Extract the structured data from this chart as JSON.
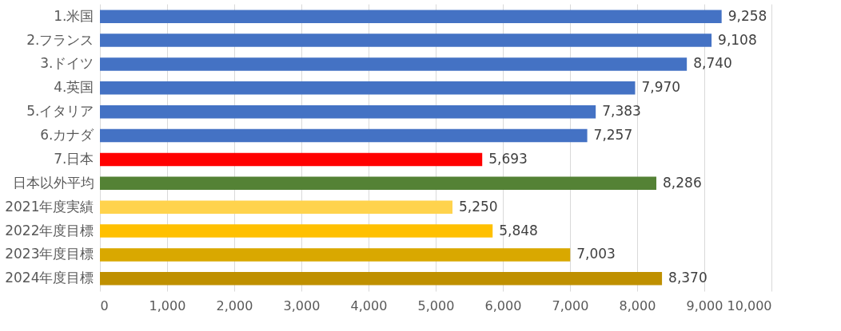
{
  "chart_data": {
    "type": "bar",
    "orientation": "horizontal",
    "categories": [
      "1.米国",
      "2.フランス",
      "3.ドイツ",
      "4.英国",
      "5.イタリア",
      "6.カナダ",
      "7.日本",
      "日本以外平均",
      "2021年度実績",
      "2022年度目標",
      "2023年度目標",
      "2024年度目標"
    ],
    "values": [
      9258,
      9108,
      8740,
      7970,
      7383,
      7257,
      5693,
      8286,
      5250,
      5848,
      7003,
      8370
    ],
    "value_labels": [
      "9,258",
      "9,108",
      "8,740",
      "7,970",
      "7,383",
      "7,257",
      "5,693",
      "8,286",
      "5,250",
      "5,848",
      "7,003",
      "8,370"
    ],
    "colors": [
      "#4472c4",
      "#4472c4",
      "#4472c4",
      "#4472c4",
      "#4472c4",
      "#4472c4",
      "#ff0000",
      "#548235",
      "#ffd34d",
      "#ffc000",
      "#d9a800",
      "#bf9000"
    ],
    "xlim": [
      0,
      10000
    ],
    "xticks": [
      0,
      {
        "value": 1000,
        "label": "1,000"
      },
      {
        "value": 2000,
        "label": "2,000"
      },
      {
        "value": 3000,
        "label": "3,000"
      },
      {
        "value": 4000,
        "label": "4,000"
      },
      {
        "value": 5000,
        "label": "5,000"
      },
      {
        "value": 6000,
        "label": "6,000"
      },
      {
        "value": 7000,
        "label": "7,000"
      },
      {
        "value": 8000,
        "label": "8,000"
      },
      {
        "value": 9000,
        "label": "9,000"
      },
      {
        "value": 10000,
        "label": "10,000"
      }
    ],
    "grid": "x"
  }
}
